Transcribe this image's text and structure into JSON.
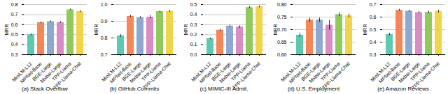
{
  "chart_data": [
    {
      "type": "bar",
      "title": "(a) Stack Overflow",
      "categories": [
        "MiniLM-L12",
        "MPNet-Base",
        "BGE-Large",
        "Mxbai-Large",
        "TPP-Llama",
        "TPP-Llama-Chat"
      ],
      "values": [
        0.5,
        0.62,
        0.63,
        0.622,
        0.748,
        0.73
      ],
      "errors": [
        0.01,
        0.008,
        0.008,
        0.008,
        0.008,
        0.01
      ],
      "colors": [
        "#5ec8b0",
        "#f4875a",
        "#8ea8d0",
        "#d98bc4",
        "#91c95e",
        "#f0d44a"
      ],
      "ylabel": "MRR",
      "ylim": [
        0.3,
        0.8
      ],
      "yticks": [
        0.3,
        0.4,
        0.5,
        0.6,
        0.7,
        0.8
      ],
      "grid": true
    },
    {
      "type": "bar",
      "title": "(b) GitHub Commits",
      "categories": [
        "MiniLM-L12",
        "MPNet-Base",
        "BGE-Large",
        "Mxbai-Large",
        "TPP-Llama",
        "TPP-Llama-Chat"
      ],
      "values": [
        0.813,
        0.93,
        0.922,
        0.925,
        0.958,
        0.96
      ],
      "errors": [
        0.008,
        0.006,
        0.006,
        0.01,
        0.006,
        0.006
      ],
      "colors": [
        "#5ec8b0",
        "#f4875a",
        "#8ea8d0",
        "#d98bc4",
        "#91c95e",
        "#f0d44a"
      ],
      "ylabel": "MRR",
      "ylim": [
        0.7,
        1.0
      ],
      "yticks": [
        0.7,
        0.8,
        0.9,
        {
          "value": 1,
          "label": "1.0"
        }
      ],
      "grid": true
    },
    {
      "type": "bar",
      "title": "(c) MIMIC-III Admit.",
      "categories": [
        "MiniLM-L12",
        "MPNet-Base",
        "BGE-Large",
        "Mxbai-Large",
        "TPP-Llama",
        "TPP-Llama-Chat"
      ],
      "values": [
        0.16,
        0.245,
        0.285,
        0.277,
        0.47,
        0.478
      ],
      "errors": [
        0.008,
        0.01,
        0.01,
        0.012,
        0.01,
        0.01
      ],
      "colors": [
        "#5ec8b0",
        "#f4875a",
        "#8ea8d0",
        "#d98bc4",
        "#91c95e",
        "#f0d44a"
      ],
      "ylabel": "MRR",
      "ylim": [
        0.0,
        0.5
      ],
      "yticks": [
        {
          "value": 0,
          "label": "0.0"
        },
        0.1,
        0.2,
        0.3,
        0.4,
        0.5
      ],
      "grid": true
    },
    {
      "type": "bar",
      "title": "(d) U.S. Employment",
      "categories": [
        "MiniLM-L12",
        "MPNet-Base",
        "BGE-Large",
        "Mxbai-Large",
        "TPP-Llama",
        "TPP-Llama-Chat"
      ],
      "values": [
        0.678,
        0.738,
        0.738,
        0.718,
        0.76,
        0.755
      ],
      "errors": [
        0.008,
        0.008,
        0.008,
        0.02,
        0.008,
        0.008
      ],
      "colors": [
        "#5ec8b0",
        "#f4875a",
        "#8ea8d0",
        "#d98bc4",
        "#91c95e",
        "#f0d44a"
      ],
      "ylabel": "MRR",
      "ylim": [
        0.6,
        0.8
      ],
      "yticks": [
        {
          "value": 0.6,
          "label": "0.60"
        },
        0.65,
        {
          "value": 0.7,
          "label": "0.70"
        },
        0.75,
        {
          "value": 0.8,
          "label": "0.80"
        }
      ],
      "grid": true
    },
    {
      "type": "bar",
      "title": "(e) Amazon Reviews",
      "categories": [
        "MiniLM-L12",
        "MPNet-Base",
        "BGE-Large",
        "Mxbai-Large",
        "TPP-Llama",
        "TPP-Llama-Chat"
      ],
      "values": [
        0.462,
        0.655,
        0.648,
        0.636,
        0.638,
        0.645
      ],
      "errors": [
        0.01,
        0.008,
        0.008,
        0.008,
        0.01,
        0.01
      ],
      "colors": [
        "#5ec8b0",
        "#f4875a",
        "#8ea8d0",
        "#d98bc4",
        "#91c95e",
        "#f0d44a"
      ],
      "ylabel": "MRR",
      "ylim": [
        0.3,
        0.7
      ],
      "yticks": [
        0.3,
        0.4,
        0.5,
        0.6,
        0.7
      ],
      "grid": true
    }
  ]
}
